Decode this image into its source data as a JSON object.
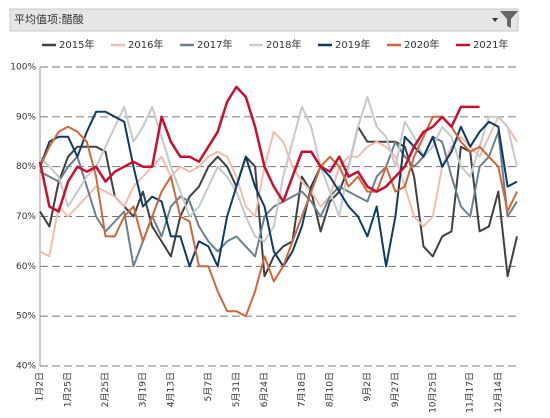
{
  "filter": {
    "label": "平均值项:醋酸"
  },
  "chart_data": {
    "type": "line",
    "categories": [
      "1月2日",
      null,
      null,
      "1月25日",
      null,
      null,
      null,
      "2月25日",
      null,
      null,
      null,
      "3月19日",
      null,
      null,
      "4月13日",
      null,
      null,
      null,
      "5月7日",
      null,
      null,
      "5月31日",
      null,
      null,
      "6月24日",
      null,
      null,
      null,
      "7月18日",
      null,
      null,
      "8月10日",
      null,
      null,
      null,
      "9月2日",
      null,
      null,
      "9月27日",
      null,
      null,
      null,
      "10月25日",
      null,
      null,
      null,
      "11月17日",
      null,
      null,
      "12月14日",
      null,
      null
    ],
    "series": [
      {
        "name": "2015年",
        "color": "#404040",
        "values": [
          71,
          68,
          77,
          82,
          84,
          84,
          84,
          83,
          74,
          72,
          70,
          75,
          68,
          65,
          62,
          70,
          74,
          76,
          80,
          82,
          80,
          76,
          82,
          80,
          58,
          62,
          64,
          65,
          78,
          75,
          67,
          73,
          75,
          80,
          88,
          85,
          85,
          85,
          85,
          84,
          78,
          64,
          62,
          66,
          67,
          84,
          83,
          67,
          68,
          75,
          58,
          66
        ]
      },
      {
        "name": "2016年",
        "color": "#f2bcae",
        "values": [
          63,
          62,
          72,
          70,
          72,
          74,
          76,
          75,
          74,
          72,
          76,
          78,
          80,
          82,
          78,
          80,
          79,
          80,
          82,
          83,
          82,
          78,
          72,
          70,
          80,
          87,
          85,
          80,
          77,
          75,
          72,
          74,
          80,
          82,
          82,
          84,
          85,
          84,
          82,
          76,
          70,
          68,
          70,
          80,
          84,
          86,
          84,
          82,
          86,
          90,
          88,
          85
        ]
      },
      {
        "name": "2017年",
        "color": "#6b7f8c",
        "values": [
          79,
          78,
          77,
          80,
          82,
          76,
          70,
          67,
          69,
          71,
          60,
          65,
          70,
          66,
          72,
          74,
          73,
          68,
          65,
          63,
          65,
          66,
          64,
          62,
          70,
          72,
          73,
          74,
          75,
          73,
          70,
          74,
          76,
          75,
          74,
          73,
          78,
          80,
          85,
          82,
          80,
          82,
          86,
          85,
          78,
          72,
          70,
          80,
          82,
          87,
          70,
          73
        ]
      },
      {
        "name": "2018年",
        "color": "#c6c9cc",
        "values": [
          82,
          80,
          78,
          72,
          75,
          78,
          80,
          84,
          88,
          92,
          85,
          88,
          92,
          86,
          80,
          75,
          70,
          72,
          76,
          80,
          78,
          75,
          70,
          66,
          65,
          68,
          78,
          85,
          92,
          88,
          80,
          75,
          70,
          80,
          88,
          94,
          88,
          86,
          80,
          89,
          86,
          82,
          84,
          88,
          86,
          80,
          78,
          84,
          90,
          90,
          88,
          80
        ]
      },
      {
        "name": "2019年",
        "color": "#0d3b66",
        "values": [
          80,
          85,
          86,
          86,
          82,
          87,
          91,
          91,
          90,
          89,
          80,
          72,
          74,
          73,
          66,
          66,
          60,
          65,
          64,
          60,
          70,
          76,
          82,
          76,
          72,
          63,
          60,
          63,
          68,
          76,
          80,
          78,
          75,
          72,
          70,
          66,
          72,
          60,
          70,
          86,
          84,
          82,
          86,
          80,
          83,
          88,
          84,
          87,
          89,
          88,
          76,
          77
        ]
      },
      {
        "name": "2020年",
        "color": "#d0663a",
        "values": [
          80,
          84,
          87,
          88,
          87,
          85,
          78,
          66,
          66,
          70,
          72,
          65,
          70,
          75,
          78,
          70,
          69,
          60,
          60,
          55,
          51,
          51,
          50,
          55,
          62,
          57,
          60,
          65,
          70,
          75,
          80,
          82,
          80,
          76,
          78,
          75,
          75,
          80,
          75,
          76,
          82,
          86,
          90,
          90,
          88,
          85,
          83,
          84,
          82,
          80,
          71,
          75
        ]
      },
      {
        "name": "2021年",
        "color": "#c8102e",
        "values": [
          81,
          72,
          71,
          77,
          80,
          79,
          80,
          77,
          79,
          80,
          81,
          80,
          80,
          90,
          85,
          82,
          82,
          81,
          84,
          87,
          93,
          96,
          94,
          88,
          80,
          76,
          73,
          78,
          83,
          83,
          80,
          79,
          82,
          78,
          79,
          76,
          75,
          76,
          78,
          80,
          84,
          87,
          88,
          90,
          88,
          92,
          92,
          92,
          null,
          null,
          null,
          null
        ]
      }
    ],
    "ylim": [
      40,
      100
    ],
    "yticks": [
      {
        "value": 40,
        "label": "40%"
      },
      {
        "value": 50,
        "label": "50%"
      },
      {
        "value": 60,
        "label": "60%"
      },
      {
        "value": 70,
        "label": "70%"
      },
      {
        "value": 80,
        "label": "80%"
      },
      {
        "value": 90,
        "label": "90%"
      },
      {
        "value": 100,
        "label": "100%"
      }
    ],
    "grid": true,
    "legend": "top"
  }
}
